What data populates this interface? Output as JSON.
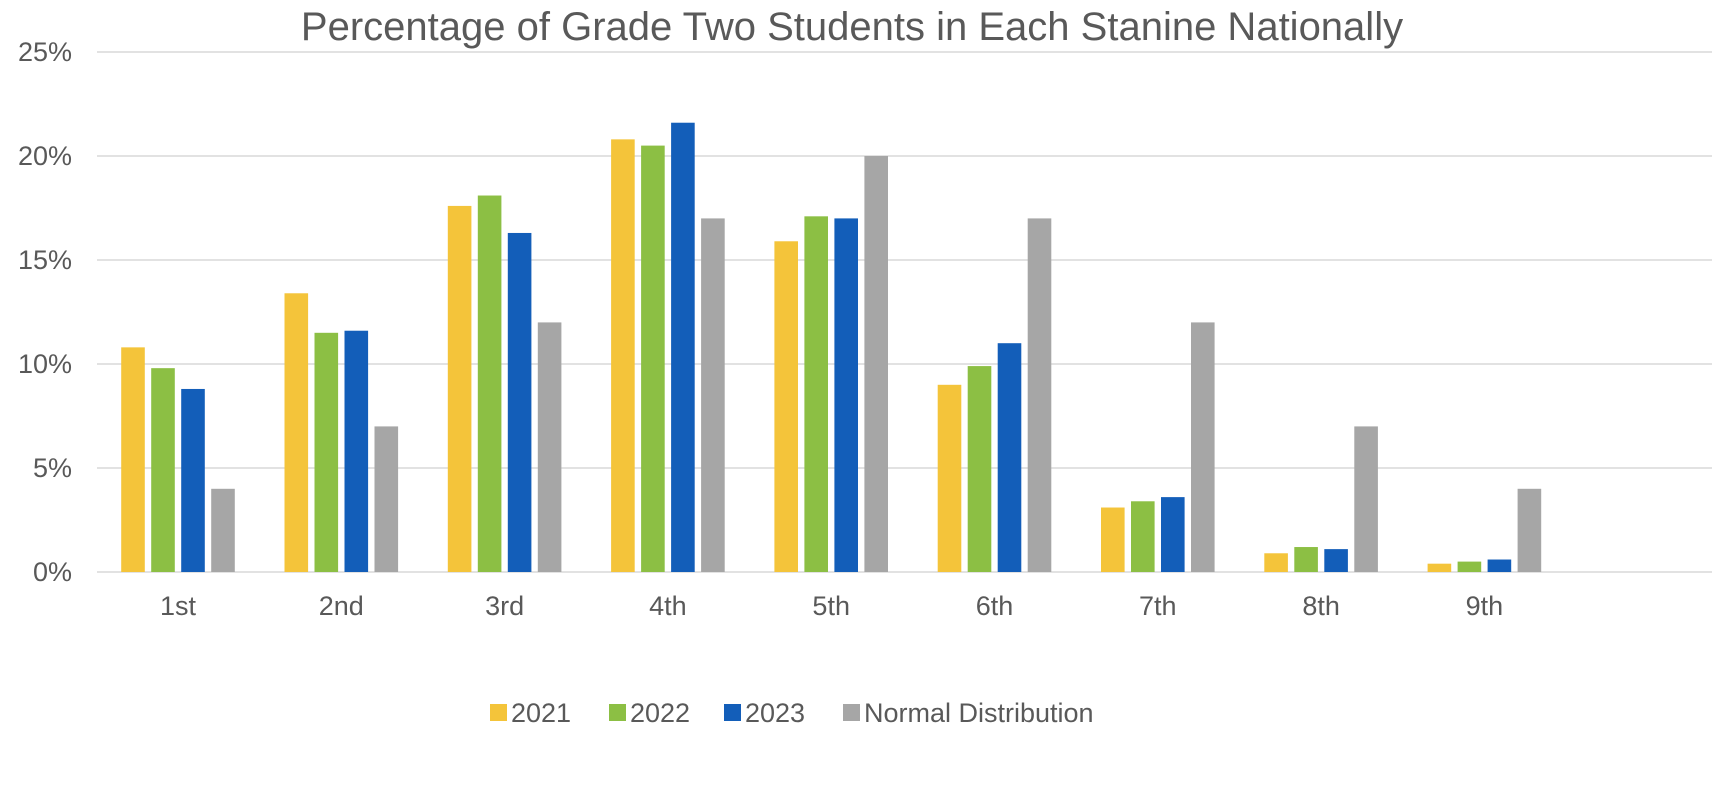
{
  "chart_data": {
    "type": "bar",
    "title": "Percentage of Grade Two Students in Each Stanine Nationally",
    "xlabel": "",
    "ylabel": "",
    "categories": [
      "1st",
      "2nd",
      "3rd",
      "4th",
      "5th",
      "6th",
      "7th",
      "8th",
      "9th"
    ],
    "series": [
      {
        "name": "2021",
        "color": "#F4C43A",
        "values": [
          10.8,
          13.4,
          17.6,
          20.8,
          15.9,
          9.0,
          3.1,
          0.9,
          0.4
        ]
      },
      {
        "name": "2022",
        "color": "#8CBF44",
        "values": [
          9.8,
          11.5,
          18.1,
          20.5,
          17.1,
          9.9,
          3.4,
          1.2,
          0.5
        ]
      },
      {
        "name": "2023",
        "color": "#135EB9",
        "values": [
          8.8,
          11.6,
          16.3,
          21.6,
          17.0,
          11.0,
          3.6,
          1.1,
          0.6
        ]
      },
      {
        "name": "Normal Distribution",
        "color": "#A6A6A6",
        "values": [
          4,
          7,
          12,
          17,
          20,
          17,
          12,
          7,
          4
        ]
      }
    ],
    "ylim": [
      0,
      25
    ],
    "yticks": [
      "0%",
      "5%",
      "10%",
      "15%",
      "20%",
      "25%"
    ],
    "ytick_values": [
      0,
      5,
      10,
      15,
      20,
      25
    ],
    "grid": true,
    "legend_position": "bottom"
  }
}
